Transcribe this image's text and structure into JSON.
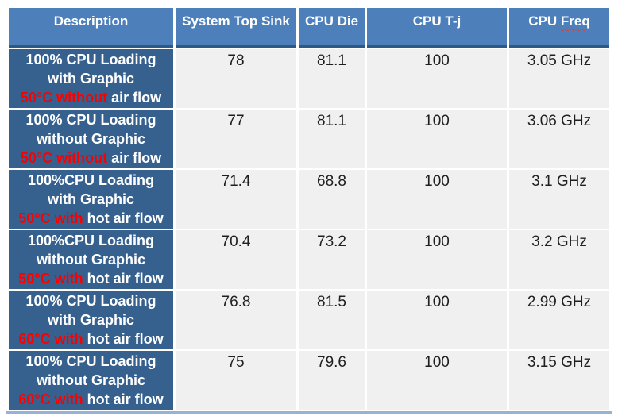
{
  "table": {
    "columns": [
      "Description",
      "System Top Sink",
      "CPU Die",
      "CPU T-j"
    ],
    "freq_column": {
      "prefix": "CPU",
      "word": "Freq"
    },
    "rows": [
      {
        "desc_line1": "100% CPU Loading",
        "desc_line2": "with Graphic",
        "desc_red": "50°C without",
        "desc_rest": "air flow",
        "values": [
          "78",
          "81.1",
          "100",
          "3.05 GHz"
        ]
      },
      {
        "desc_line1": "100% CPU Loading",
        "desc_line2": "without Graphic",
        "desc_red": "50°C without",
        "desc_rest": "air flow",
        "values": [
          "77",
          "81.1",
          "100",
          "3.06 GHz"
        ]
      },
      {
        "desc_line1": "100%CPU Loading",
        "desc_line2": "with Graphic",
        "desc_red": "50°C with",
        "desc_rest": "hot air flow",
        "values": [
          "71.4",
          "68.8",
          "100",
          "3.1 GHz"
        ]
      },
      {
        "desc_line1": "100%CPU Loading",
        "desc_line2": "without Graphic",
        "desc_red": "50°C with",
        "desc_rest": "hot air flow",
        "values": [
          "70.4",
          "73.2",
          "100",
          "3.2 GHz"
        ]
      },
      {
        "desc_line1": "100% CPU Loading",
        "desc_line2": "with Graphic",
        "desc_red": "60°C with",
        "desc_rest": "hot air flow",
        "values": [
          "76.8",
          "81.5",
          "100",
          "2.99 GHz"
        ]
      },
      {
        "desc_line1": "100% CPU Loading",
        "desc_line2": "without Graphic",
        "desc_red": "60°C with",
        "desc_rest": "hot air flow",
        "values": [
          "75",
          "79.6",
          "100",
          "3.15 GHz"
        ]
      }
    ]
  },
  "colors": {
    "header_bg": "#4d80bb",
    "description_bg": "#36618f",
    "value_bg": "#f1f0f0",
    "red_text": "#fb0000",
    "header_rule": "#2d5984",
    "bottom_rule": "#97b2d4"
  }
}
